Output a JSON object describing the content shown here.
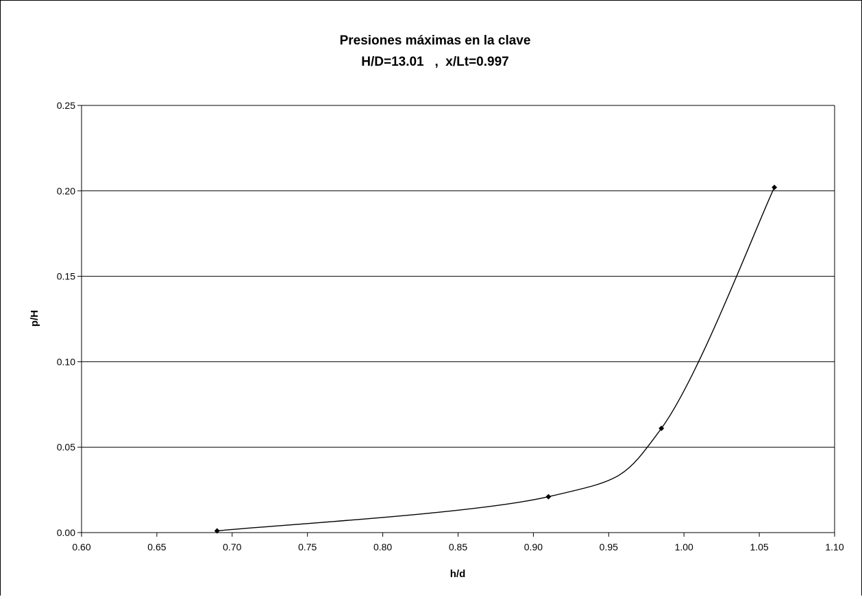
{
  "chart_data": {
    "type": "line",
    "title": "Presiones máximas en la clave",
    "subtitle": "H/D=13.01   ,  x/Lt=0.997",
    "xlabel": "h/d",
    "ylabel": "p/H",
    "xlim": [
      0.6,
      1.1
    ],
    "ylim": [
      0,
      0.25
    ],
    "x_ticks": [
      "0.60",
      "0.65",
      "0.70",
      "0.75",
      "0.80",
      "0.85",
      "0.90",
      "0.95",
      "1.00",
      "1.05",
      "1.10"
    ],
    "y_ticks": [
      "0.00",
      "0.05",
      "0.10",
      "0.15",
      "0.20",
      "0.25"
    ],
    "grid": "horizontal",
    "legend": "none",
    "line_color": "#000000",
    "marker": "diamond",
    "smoothed": true,
    "series": [
      {
        "x": [
          0.69,
          0.91,
          0.985,
          1.06
        ],
        "y": [
          0.001,
          0.021,
          0.061,
          0.202
        ]
      }
    ]
  }
}
